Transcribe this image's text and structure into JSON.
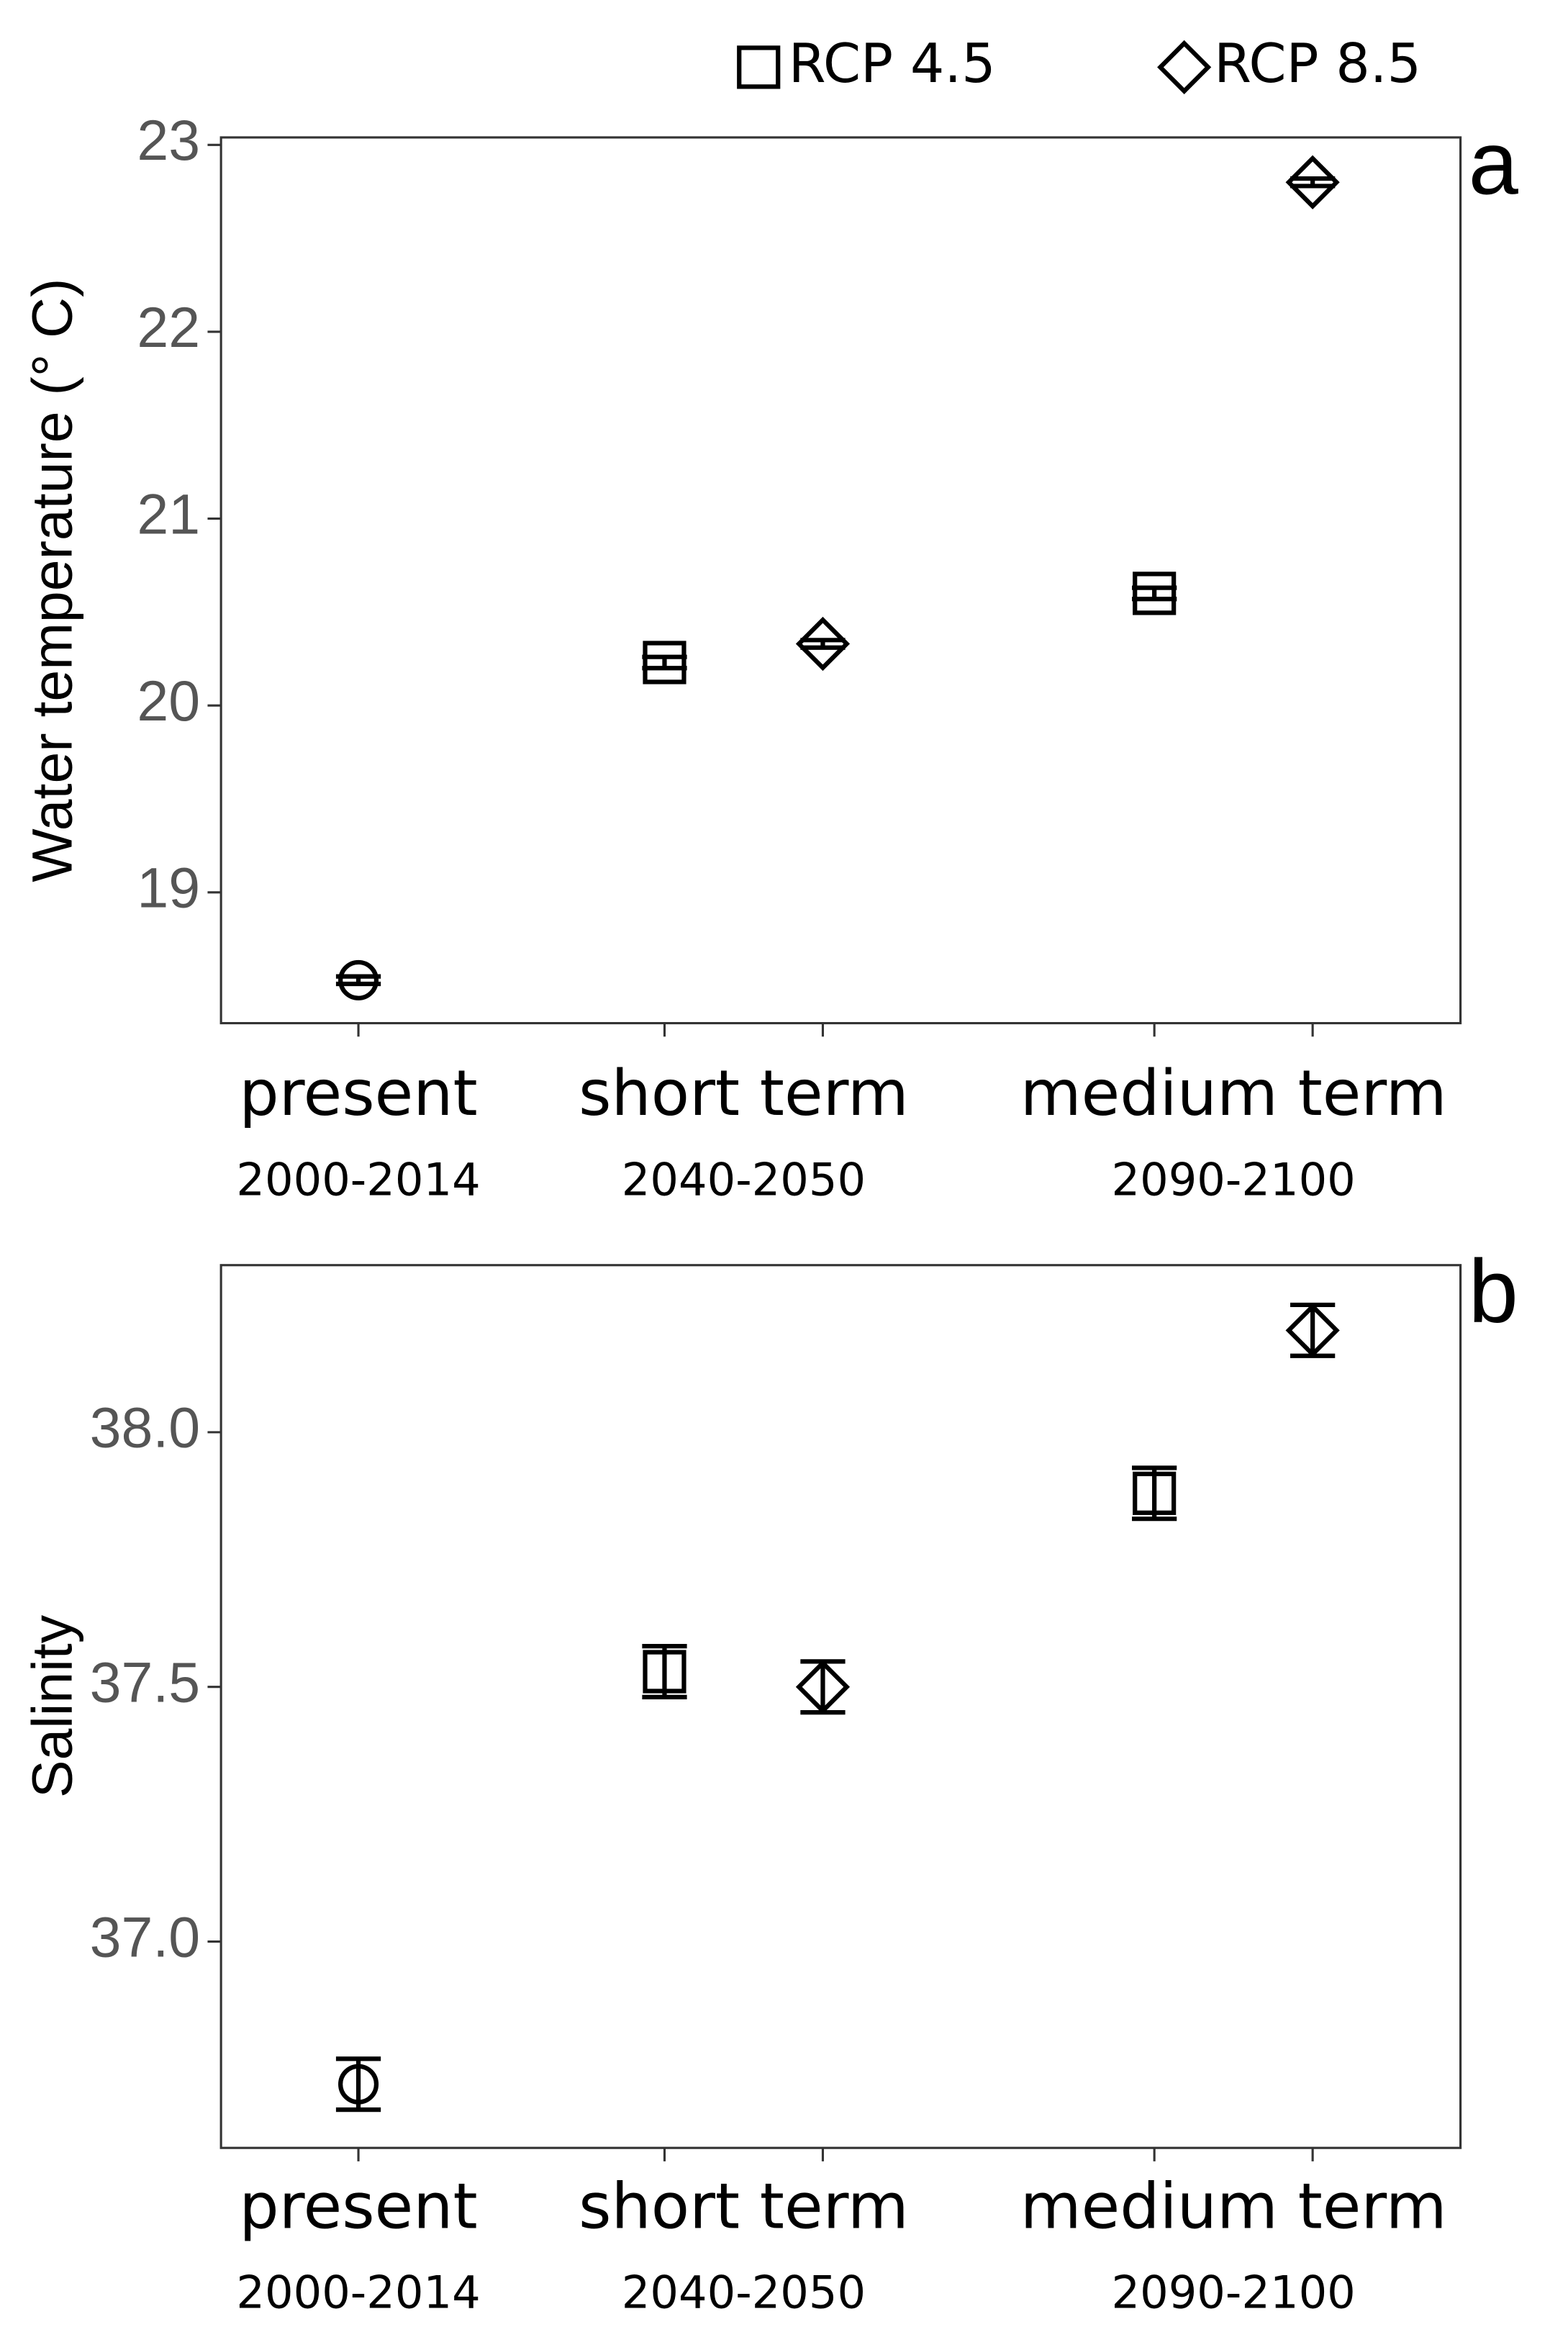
{
  "chart_data": [
    {
      "type": "scatter",
      "panel_label": "a",
      "y_label": "Water temperature (° C)",
      "categories": [
        "present",
        "short term",
        "medium term"
      ],
      "periods": [
        "2000-2014",
        "2040-2050",
        "2090-2100"
      ],
      "series": [
        {
          "marker": "circle",
          "color": "#000000",
          "values": [
            18.53,
            null,
            null
          ],
          "errors": [
            0.02,
            null,
            null
          ]
        },
        {
          "name": "RCP 4.5",
          "marker": "square",
          "color": "#000000",
          "values": [
            null,
            20.23,
            20.6
          ],
          "errors": [
            null,
            0.03,
            0.03
          ]
        },
        {
          "name": "RCP 8.5",
          "marker": "diamond",
          "color": "#000000",
          "values": [
            null,
            20.33,
            22.8
          ],
          "errors": [
            null,
            0.02,
            0.02
          ]
        }
      ],
      "ylim": [
        18.3,
        23.04
      ],
      "yticks": [
        19,
        20,
        21,
        22,
        23
      ],
      "legend": "top",
      "grid": false
    },
    {
      "type": "scatter",
      "panel_label": "b",
      "y_label": "Salinity",
      "categories": [
        "present",
        "short term",
        "medium term"
      ],
      "periods": [
        "2000-2014",
        "2040-2050",
        "2090-2100"
      ],
      "series": [
        {
          "marker": "circle",
          "color": "#000000",
          "values": [
            36.72,
            null,
            null
          ],
          "errors": [
            0.05,
            null,
            null
          ]
        },
        {
          "marker": "square",
          "color": "#000000",
          "values": [
            null,
            37.53,
            37.88
          ],
          "errors": [
            null,
            0.05,
            0.05
          ]
        },
        {
          "marker": "diamond",
          "color": "#000000",
          "values": [
            null,
            37.5,
            38.2
          ],
          "errors": [
            null,
            0.05,
            0.05
          ]
        }
      ],
      "ylim": [
        36.595,
        38.328
      ],
      "yticks": [
        {
          "value": 37.0,
          "label": "37.0"
        },
        {
          "value": 37.5,
          "label": "37.5"
        },
        {
          "value": 38.0,
          "label": "38.0"
        }
      ],
      "grid": false
    }
  ]
}
